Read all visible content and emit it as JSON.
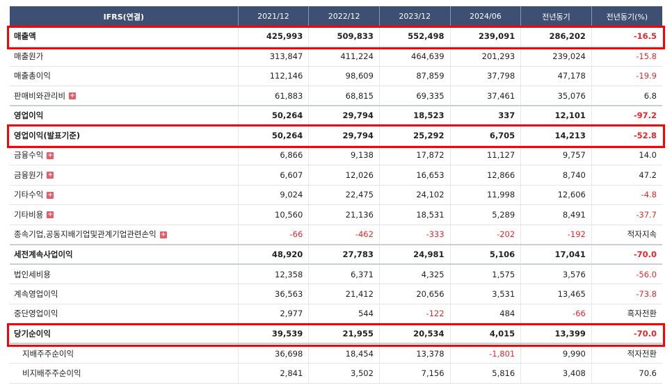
{
  "header": [
    "IFRS(연결)",
    "2021/12",
    "2022/12",
    "2023/12",
    "2024/06",
    "전년동기",
    "전년동기(%)"
  ],
  "rows": [
    {
      "label": "매출액",
      "values": [
        "425,993",
        "509,833",
        "552,498",
        "239,091",
        "286,202",
        "-16.5"
      ]
    },
    {
      "label": "매출원가",
      "values": [
        "313,847",
        "411,224",
        "464,639",
        "201,293",
        "239,024",
        "-15.8"
      ]
    },
    {
      "label": "매출총이익",
      "values": [
        "112,146",
        "98,609",
        "87,859",
        "37,798",
        "47,178",
        "-19.9"
      ]
    },
    {
      "label": "판매비와관리비",
      "values": [
        "61,883",
        "68,815",
        "69,335",
        "37,461",
        "35,076",
        "6.8"
      ]
    },
    {
      "label": "영업이익",
      "values": [
        "50,264",
        "29,794",
        "18,523",
        "337",
        "12,101",
        "-97.2"
      ]
    },
    {
      "label": "영업이익(발표기준)",
      "values": [
        "50,264",
        "29,794",
        "25,292",
        "6,705",
        "14,213",
        "-52.8"
      ]
    },
    {
      "label": "금융수익",
      "values": [
        "6,866",
        "9,138",
        "17,872",
        "11,127",
        "9,757",
        "14.0"
      ]
    },
    {
      "label": "금융원가",
      "values": [
        "6,607",
        "12,026",
        "16,653",
        "12,866",
        "8,740",
        "47.2"
      ]
    },
    {
      "label": "기타수익",
      "values": [
        "9,024",
        "22,475",
        "24,102",
        "11,998",
        "12,606",
        "-4.8"
      ]
    },
    {
      "label": "기타비용",
      "values": [
        "10,560",
        "21,136",
        "18,531",
        "5,289",
        "8,491",
        "-37.7"
      ]
    },
    {
      "label": "종속기업,공동지배기업및관계기업관련손익",
      "values": [
        "-66",
        "-462",
        "-333",
        "-202",
        "-192",
        "적자지속"
      ]
    },
    {
      "label": "세전계속사업이익",
      "values": [
        "48,920",
        "27,783",
        "24,981",
        "5,106",
        "17,041",
        "-70.0"
      ]
    },
    {
      "label": "법인세비용",
      "values": [
        "12,358",
        "6,371",
        "4,325",
        "1,575",
        "3,576",
        "-56.0"
      ]
    },
    {
      "label": "계속영업이익",
      "values": [
        "36,563",
        "21,412",
        "20,656",
        "3,531",
        "13,465",
        "-73.8"
      ]
    },
    {
      "label": "중단영업이익",
      "values": [
        "2,977",
        "544",
        "-122",
        "484",
        "-66",
        "흑자전환"
      ]
    },
    {
      "label": "당기순이익",
      "values": [
        "39,539",
        "21,955",
        "20,534",
        "4,015",
        "13,399",
        "-70.0"
      ]
    },
    {
      "label": "지배주주순이익",
      "values": [
        "36,698",
        "18,454",
        "13,378",
        "-1,801",
        "9,990",
        "적자전환"
      ]
    },
    {
      "label": "비지배주주순이익",
      "values": [
        "2,841",
        "3,502",
        "7,156",
        "5,816",
        "3,408",
        "70.6"
      ]
    }
  ],
  "expand_icon": "plus-icon",
  "highlight_color": "#ff0000"
}
